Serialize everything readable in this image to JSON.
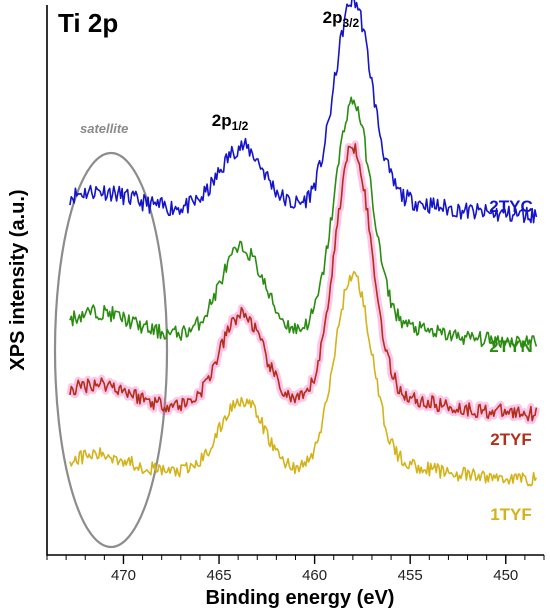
{
  "chart_data": {
    "type": "line",
    "title": "Ti 2p",
    "xlabel": "Binding energy (eV)",
    "ylabel": "XPS intensity (a.u.)",
    "xlim": [
      474,
      448
    ],
    "x_reversed": true,
    "y_ticks_shown": false,
    "xticks": [
      470,
      465,
      460,
      455,
      450
    ],
    "xtick_labels": [
      "470",
      "465",
      "460",
      "455",
      "450"
    ],
    "minor_tick_step": 1,
    "peaks": [
      {
        "label": "2p",
        "sub": "1/2",
        "x": 463.9
      },
      {
        "label": "2p",
        "sub": "3/2",
        "x": 458.1
      }
    ],
    "annotation": {
      "text": "satellite",
      "x_center": 471.3
    },
    "series": [
      {
        "name": "2TYC",
        "color": "#1515c8",
        "base": 0.625,
        "p32": 0.365,
        "p12": 0.115,
        "sat": 0.03,
        "noise": 0.016,
        "glow": false
      },
      {
        "name": "2TYN",
        "color": "#2b8c12",
        "base": 0.395,
        "p32": 0.41,
        "p12": 0.16,
        "sat": 0.04,
        "noise": 0.014,
        "glow": false
      },
      {
        "name": "2TYF",
        "color": "#b0301a",
        "glow_color": "#ff2ab0",
        "base": 0.265,
        "p32": 0.46,
        "p12": 0.17,
        "sat": 0.04,
        "noise": 0.014,
        "glow": true
      },
      {
        "name": "1TYF",
        "color": "#d4b21a",
        "base": 0.145,
        "p32": 0.345,
        "p12": 0.135,
        "sat": 0.03,
        "noise": 0.013,
        "glow": false
      }
    ]
  }
}
